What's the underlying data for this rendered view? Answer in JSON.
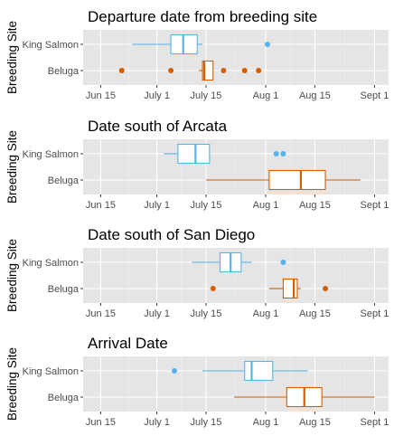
{
  "chart_data": [
    {
      "type": "boxplot",
      "title": "Departure date from breeding site",
      "ylabel": "Breeding Site",
      "categories": [
        "King Salmon",
        "Beluga"
      ],
      "x_ticks": [
        "Jun 15",
        "July 1",
        "July 15",
        "Aug 1",
        "Aug 15",
        "Sept 1"
      ],
      "x_tick_values": [
        15,
        31,
        45,
        62,
        76,
        93
      ],
      "xlim": [
        10,
        97
      ],
      "series": [
        {
          "category": "King Salmon",
          "color": "#56b4e9",
          "whisker_low": 24,
          "q1": 35,
          "median": 38.5,
          "q3": 42.5,
          "whisker_high": 44,
          "outliers": [
            62.5
          ]
        },
        {
          "category": "Beluga",
          "color": "#d55e00",
          "whisker_low": 43,
          "q1": 44,
          "median": 44.5,
          "q3": 47,
          "whisker_high": 47,
          "outliers": [
            21,
            35,
            50,
            56,
            60
          ]
        }
      ]
    },
    {
      "type": "boxplot",
      "title": "Date south of Arcata",
      "ylabel": "Breeding Site",
      "categories": [
        "King Salmon",
        "Beluga"
      ],
      "x_ticks": [
        "Jun 15",
        "July 1",
        "July 15",
        "Aug 1",
        "Aug 15",
        "Sept 1"
      ],
      "x_tick_values": [
        15,
        31,
        45,
        62,
        76,
        93
      ],
      "xlim": [
        10,
        97
      ],
      "series": [
        {
          "category": "King Salmon",
          "color": "#56b4e9",
          "whisker_low": 33,
          "q1": 37,
          "median": 42,
          "q3": 46,
          "whisker_high": 46,
          "outliers": [
            65,
            67
          ]
        },
        {
          "category": "Beluga",
          "color": "#d55e00",
          "whisker_low": 45,
          "q1": 63,
          "median": 72,
          "q3": 79,
          "whisker_high": 89,
          "outliers": []
        }
      ]
    },
    {
      "type": "boxplot",
      "title": "Date south of San Diego",
      "ylabel": "Breeding Site",
      "categories": [
        "King Salmon",
        "Beluga"
      ],
      "x_ticks": [
        "Jun 15",
        "July 1",
        "July 15",
        "Aug 1",
        "Aug 15",
        "Sept 1"
      ],
      "x_tick_values": [
        15,
        31,
        45,
        62,
        76,
        93
      ],
      "xlim": [
        10,
        97
      ],
      "series": [
        {
          "category": "King Salmon",
          "color": "#56b4e9",
          "whisker_low": 41,
          "q1": 49,
          "median": 52,
          "q3": 55,
          "whisker_high": 58,
          "outliers": [
            67
          ]
        },
        {
          "category": "Beluga",
          "color": "#d55e00",
          "whisker_low": 63,
          "q1": 67,
          "median": 70,
          "q3": 71,
          "whisker_high": 72,
          "outliers": [
            47,
            79
          ]
        }
      ]
    },
    {
      "type": "boxplot",
      "title": "Arrival Date",
      "ylabel": "Breeding Site",
      "categories": [
        "King Salmon",
        "Beluga"
      ],
      "x_ticks": [
        "Jun 15",
        "July 1",
        "July 15",
        "Aug 1",
        "Aug 15",
        "Sept 1"
      ],
      "x_tick_values": [
        15,
        31,
        45,
        62,
        76,
        93
      ],
      "xlim": [
        10,
        97
      ],
      "series": [
        {
          "category": "King Salmon",
          "color": "#56b4e9",
          "whisker_low": 44,
          "q1": 56,
          "median": 58,
          "q3": 64,
          "whisker_high": 74,
          "outliers": [
            36
          ]
        },
        {
          "category": "Beluga",
          "color": "#d55e00",
          "whisker_low": 53,
          "q1": 68,
          "median": 73,
          "q3": 78,
          "whisker_high": 93,
          "outliers": []
        }
      ]
    }
  ]
}
